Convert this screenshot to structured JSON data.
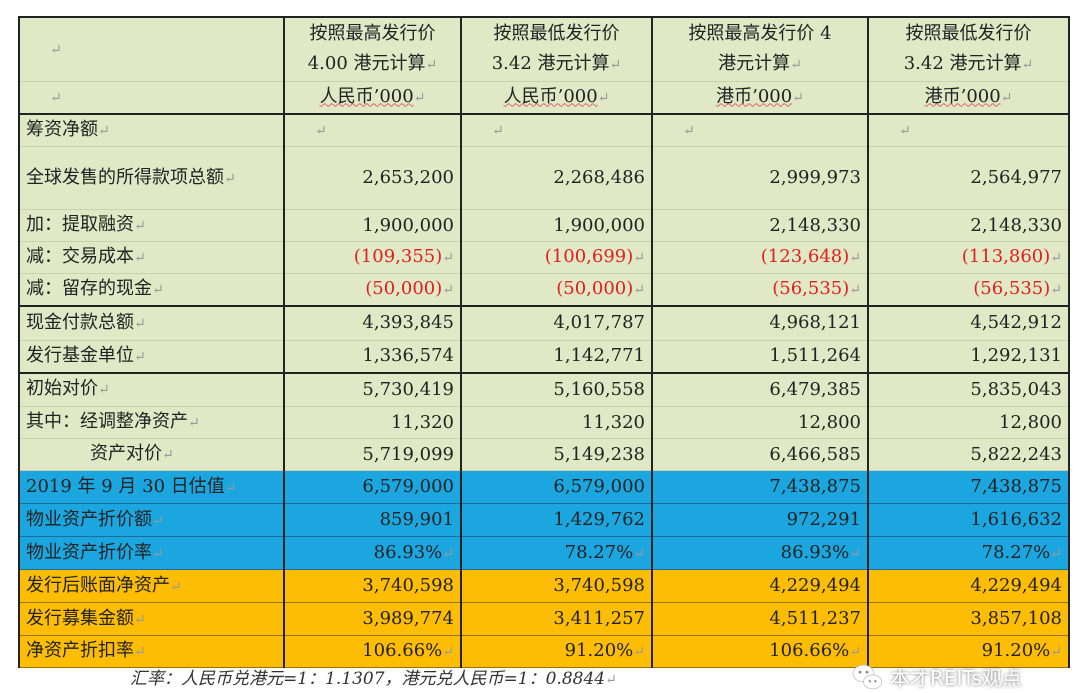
{
  "header": {
    "columns": [
      {
        "title_line1": "按照最高发行价",
        "title_line2": "4.00 港元计算",
        "unit": "人民币’000"
      },
      {
        "title_line1": "按照最低发行价",
        "title_line2": "3.42 港元计算",
        "unit": "人民币’000"
      },
      {
        "title_line1": "按照最高发行价 4",
        "title_line2": "港元计算",
        "unit": "港币’000"
      },
      {
        "title_line1": "按照最低发行价",
        "title_line2": "3.42 港元计算",
        "unit": "港币’000"
      }
    ]
  },
  "rows": [
    {
      "label": "筹资净额",
      "values": [
        "",
        "",
        "",
        ""
      ]
    },
    {
      "label": "全球发售的所得款项总额",
      "values": [
        "2,653,200",
        "2,268,486",
        "2,999,973",
        "2,564,977"
      ]
    },
    {
      "label": "加：提取融资",
      "values": [
        "1,900,000",
        "1,900,000",
        "2,148,330",
        "2,148,330"
      ]
    },
    {
      "label": "减：交易成本",
      "values": [
        "(109,355)",
        "(100,699)",
        "(123,648)",
        "(113,860)"
      ]
    },
    {
      "label": "减：留存的现金",
      "values": [
        "(50,000)",
        "(50,000)",
        "(56,535)",
        "(56,535)"
      ]
    },
    {
      "label": "现金付款总额",
      "values": [
        "4,393,845",
        "4,017,787",
        "4,968,121",
        "4,542,912"
      ]
    },
    {
      "label": "发行基金单位",
      "values": [
        "1,336,574",
        "1,142,771",
        "1,511,264",
        "1,292,131"
      ]
    },
    {
      "label": "初始对价",
      "values": [
        "5,730,419",
        "5,160,558",
        "6,479,385",
        "5,835,043"
      ]
    },
    {
      "label": "其中：经调整净资产",
      "values": [
        "11,320",
        "11,320",
        "12,800",
        "12,800"
      ]
    },
    {
      "label": "资产对价",
      "values": [
        "5,719,099",
        "5,149,238",
        "6,466,585",
        "5,822,243"
      ]
    },
    {
      "label": "2019 年 9 月 30 日估值",
      "values": [
        "6,579,000",
        "6,579,000",
        "7,438,875",
        "7,438,875"
      ]
    },
    {
      "label": "物业资产折价额",
      "values": [
        "859,901",
        "1,429,762",
        "972,291",
        "1,616,632"
      ]
    },
    {
      "label": "物业资产折价率",
      "values": [
        "86.93%",
        "78.27%",
        "86.93%",
        "78.27%"
      ]
    },
    {
      "label": "发行后账面净资产",
      "values": [
        "3,740,598",
        "3,740,598",
        "4,229,494",
        "4,229,494"
      ]
    },
    {
      "label": "发行募集金额",
      "values": [
        "3,989,774",
        "3,411,257",
        "4,511,237",
        "3,857,108"
      ]
    },
    {
      "label": "净资产折扣率",
      "values": [
        "106.66%",
        "91.20%",
        "106.66%",
        "91.20%"
      ]
    }
  ],
  "footnote": "汇率：人民币兑港元=1：1.1307，港元兑人民币=1：0.8844",
  "watermark": {
    "text": "本才REITs观点",
    "icon": "wechat-icon"
  },
  "colors": {
    "green": "#e0e8c6",
    "blue": "#1ba6df",
    "orange": "#fdbd05",
    "negative": "#e0201c"
  }
}
